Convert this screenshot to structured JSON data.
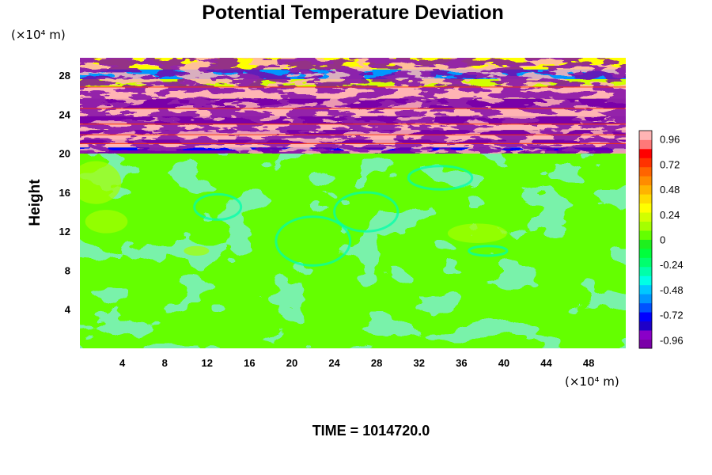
{
  "chart_data": {
    "type": "heatmap",
    "title": "Potential Temperature Deviation",
    "ylabel": "Height",
    "y_unit": "(×10⁴ m)",
    "x_unit": "(×10⁴ m)",
    "x_tick_labels": [
      "4",
      "8",
      "12",
      "16",
      "20",
      "24",
      "28",
      "32",
      "36",
      "40",
      "44",
      "48"
    ],
    "y_tick_labels": [
      "4",
      "8",
      "12",
      "16",
      "20",
      "24",
      "28"
    ],
    "x_ticks": [
      4,
      8,
      12,
      16,
      20,
      24,
      28,
      32,
      36,
      40,
      44,
      48
    ],
    "y_ticks": [
      4,
      8,
      12,
      16,
      20,
      24,
      28
    ],
    "xlim": [
      0,
      51.5
    ],
    "ylim": [
      0,
      29.8
    ],
    "colorbar": {
      "range": [
        -1.04,
        1.04
      ],
      "tick_values": [
        0.96,
        0.72,
        0.48,
        0.24,
        0,
        -0.24,
        -0.48,
        -0.72,
        -0.96
      ],
      "tick_labels": [
        "0.96",
        "0.72",
        "0.48",
        "0.24",
        "0",
        "-0.24",
        "-0.48",
        "-0.72",
        "-0.96"
      ],
      "colors": [
        "#7a00a8",
        "#8a00c8",
        "#1e00c8",
        "#0000ff",
        "#0052ff",
        "#0096ff",
        "#00c8ff",
        "#00ffe6",
        "#00ffaa",
        "#00ff6e",
        "#00ff3c",
        "#1ef01e",
        "#64ff00",
        "#a5ff00",
        "#d2ff00",
        "#ffff00",
        "#ffdc00",
        "#ffb400",
        "#ff8c00",
        "#ff6400",
        "#ff3200",
        "#ff0000",
        "#ff7878",
        "#ffb4b4"
      ]
    },
    "field_description": "Banded strong positive and negative deviations above height 20; values near 0 below 20 with weak cyan and yellow eddies.",
    "bands": [
      {
        "y_range": [
          20,
          29.8
        ],
        "values": "alternating roughly -1.0 to 1.0"
      },
      {
        "y_range": [
          0,
          20
        ],
        "values": "roughly -0.3 to 0.3, mostly near 0"
      }
    ]
  },
  "footer": {
    "time_label": "TIME = 1014720.0"
  }
}
